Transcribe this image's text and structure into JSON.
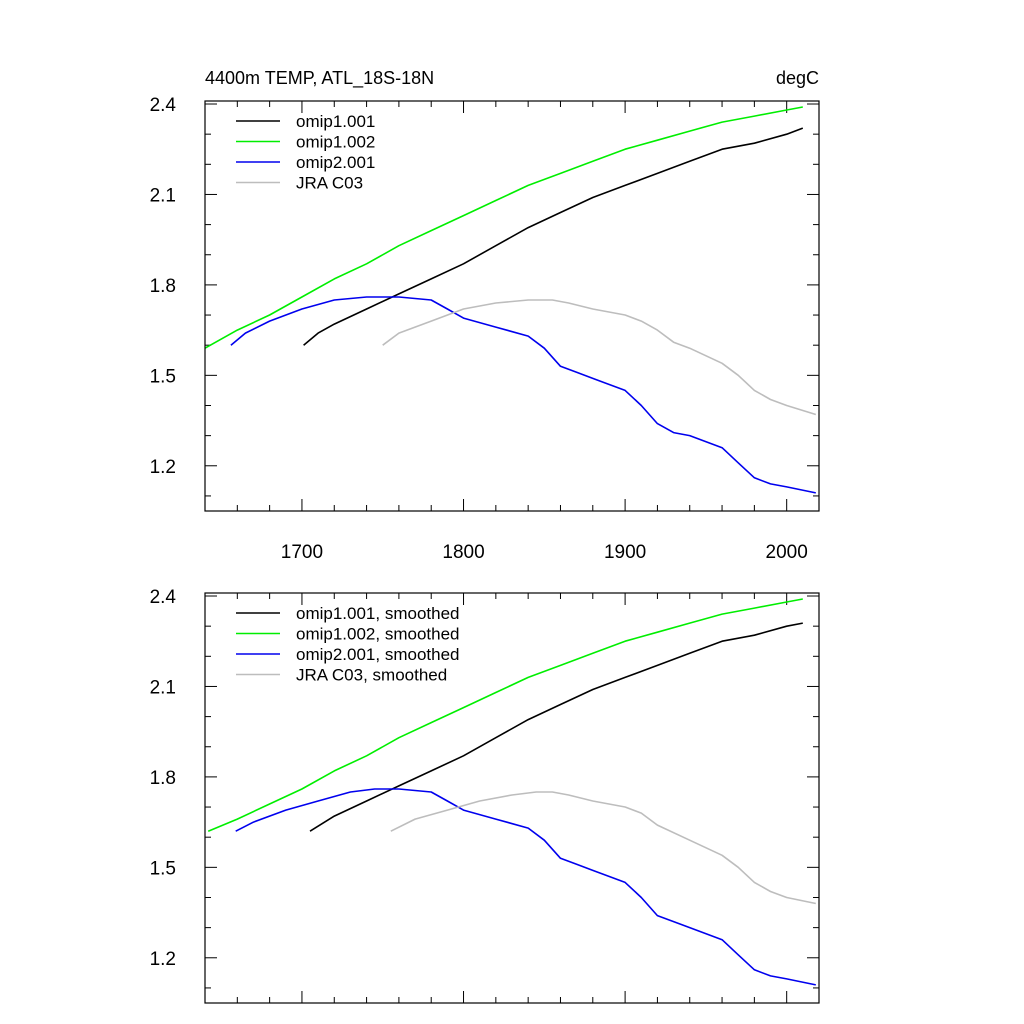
{
  "chart_data": [
    {
      "type": "line",
      "title_left": "4400m TEMP, ATL_18S-18N",
      "title_right": "degC",
      "xlabel": "",
      "ylabel": "",
      "xlim": [
        1640,
        2020
      ],
      "ylim": [
        1.05,
        2.41
      ],
      "x_ticks": [
        1700,
        1800,
        1900,
        2000
      ],
      "x_tick_labels": [
        "1700",
        "1800",
        "1900",
        "2000"
      ],
      "y_ticks": [
        1.2,
        1.5,
        1.8,
        2.1,
        2.4
      ],
      "y_tick_labels": [
        "1.2",
        "1.5",
        "1.8",
        "2.1",
        "2.4"
      ],
      "legend_position": "top-left",
      "series": [
        {
          "name": "omip1.001",
          "color": "#000000",
          "points": [
            [
              1701,
              1.6
            ],
            [
              1710,
              1.64
            ],
            [
              1720,
              1.67
            ],
            [
              1740,
              1.72
            ],
            [
              1760,
              1.77
            ],
            [
              1780,
              1.82
            ],
            [
              1800,
              1.87
            ],
            [
              1820,
              1.93
            ],
            [
              1840,
              1.99
            ],
            [
              1860,
              2.04
            ],
            [
              1880,
              2.09
            ],
            [
              1900,
              2.13
            ],
            [
              1920,
              2.17
            ],
            [
              1940,
              2.21
            ],
            [
              1960,
              2.25
            ],
            [
              1980,
              2.27
            ],
            [
              2000,
              2.3
            ],
            [
              2010,
              2.32
            ]
          ]
        },
        {
          "name": "omip1.002",
          "color": "#00ee00",
          "points": [
            [
              1640,
              1.59
            ],
            [
              1660,
              1.65
            ],
            [
              1680,
              1.7
            ],
            [
              1700,
              1.76
            ],
            [
              1720,
              1.82
            ],
            [
              1740,
              1.87
            ],
            [
              1760,
              1.93
            ],
            [
              1780,
              1.98
            ],
            [
              1800,
              2.03
            ],
            [
              1820,
              2.08
            ],
            [
              1840,
              2.13
            ],
            [
              1860,
              2.17
            ],
            [
              1880,
              2.21
            ],
            [
              1900,
              2.25
            ],
            [
              1920,
              2.28
            ],
            [
              1940,
              2.31
            ],
            [
              1960,
              2.34
            ],
            [
              1980,
              2.36
            ],
            [
              2000,
              2.38
            ],
            [
              2010,
              2.39
            ]
          ]
        },
        {
          "name": "omip2.001",
          "color": "#0000ee",
          "points": [
            [
              1656,
              1.6
            ],
            [
              1665,
              1.64
            ],
            [
              1680,
              1.68
            ],
            [
              1700,
              1.72
            ],
            [
              1720,
              1.75
            ],
            [
              1740,
              1.76
            ],
            [
              1760,
              1.76
            ],
            [
              1780,
              1.75
            ],
            [
              1790,
              1.72
            ],
            [
              1800,
              1.69
            ],
            [
              1820,
              1.66
            ],
            [
              1840,
              1.63
            ],
            [
              1850,
              1.59
            ],
            [
              1860,
              1.53
            ],
            [
              1870,
              1.51
            ],
            [
              1880,
              1.49
            ],
            [
              1900,
              1.45
            ],
            [
              1910,
              1.4
            ],
            [
              1920,
              1.34
            ],
            [
              1930,
              1.31
            ],
            [
              1940,
              1.3
            ],
            [
              1960,
              1.26
            ],
            [
              1970,
              1.21
            ],
            [
              1980,
              1.16
            ],
            [
              1990,
              1.14
            ],
            [
              2000,
              1.13
            ],
            [
              2018,
              1.11
            ]
          ]
        },
        {
          "name": "JRA C03",
          "color": "#bdbdbd",
          "points": [
            [
              1750,
              1.6
            ],
            [
              1760,
              1.64
            ],
            [
              1780,
              1.68
            ],
            [
              1800,
              1.72
            ],
            [
              1820,
              1.74
            ],
            [
              1840,
              1.75
            ],
            [
              1855,
              1.75
            ],
            [
              1865,
              1.74
            ],
            [
              1880,
              1.72
            ],
            [
              1900,
              1.7
            ],
            [
              1910,
              1.68
            ],
            [
              1920,
              1.65
            ],
            [
              1930,
              1.61
            ],
            [
              1940,
              1.59
            ],
            [
              1960,
              1.54
            ],
            [
              1970,
              1.5
            ],
            [
              1980,
              1.45
            ],
            [
              1990,
              1.42
            ],
            [
              2000,
              1.4
            ],
            [
              2018,
              1.37
            ]
          ]
        }
      ]
    },
    {
      "type": "line",
      "title_left": "",
      "title_right": "",
      "xlabel": "",
      "ylabel": "",
      "xlim": [
        1640,
        2020
      ],
      "ylim": [
        1.05,
        2.41
      ],
      "x_ticks": [
        1700,
        1800,
        1900,
        2000
      ],
      "x_tick_labels": [],
      "y_ticks": [
        1.2,
        1.5,
        1.8,
        2.1,
        2.4
      ],
      "y_tick_labels": [
        "1.2",
        "1.5",
        "1.8",
        "2.1",
        "2.4"
      ],
      "legend_position": "top-left",
      "series": [
        {
          "name": "omip1.001, smoothed",
          "color": "#000000",
          "points": [
            [
              1705,
              1.62
            ],
            [
              1720,
              1.67
            ],
            [
              1740,
              1.72
            ],
            [
              1760,
              1.77
            ],
            [
              1780,
              1.82
            ],
            [
              1800,
              1.87
            ],
            [
              1820,
              1.93
            ],
            [
              1840,
              1.99
            ],
            [
              1860,
              2.04
            ],
            [
              1880,
              2.09
            ],
            [
              1900,
              2.13
            ],
            [
              1920,
              2.17
            ],
            [
              1940,
              2.21
            ],
            [
              1960,
              2.25
            ],
            [
              1980,
              2.27
            ],
            [
              2000,
              2.3
            ],
            [
              2010,
              2.31
            ]
          ]
        },
        {
          "name": "omip1.002, smoothed",
          "color": "#00ee00",
          "points": [
            [
              1642,
              1.62
            ],
            [
              1660,
              1.66
            ],
            [
              1680,
              1.71
            ],
            [
              1700,
              1.76
            ],
            [
              1720,
              1.82
            ],
            [
              1740,
              1.87
            ],
            [
              1760,
              1.93
            ],
            [
              1780,
              1.98
            ],
            [
              1800,
              2.03
            ],
            [
              1820,
              2.08
            ],
            [
              1840,
              2.13
            ],
            [
              1860,
              2.17
            ],
            [
              1880,
              2.21
            ],
            [
              1900,
              2.25
            ],
            [
              1920,
              2.28
            ],
            [
              1940,
              2.31
            ],
            [
              1960,
              2.34
            ],
            [
              1980,
              2.36
            ],
            [
              2000,
              2.38
            ],
            [
              2010,
              2.39
            ]
          ]
        },
        {
          "name": "omip2.001, smoothed",
          "color": "#0000ee",
          "points": [
            [
              1659,
              1.62
            ],
            [
              1670,
              1.65
            ],
            [
              1690,
              1.69
            ],
            [
              1710,
              1.72
            ],
            [
              1730,
              1.75
            ],
            [
              1745,
              1.76
            ],
            [
              1760,
              1.76
            ],
            [
              1780,
              1.75
            ],
            [
              1790,
              1.72
            ],
            [
              1800,
              1.69
            ],
            [
              1820,
              1.66
            ],
            [
              1840,
              1.63
            ],
            [
              1850,
              1.59
            ],
            [
              1860,
              1.53
            ],
            [
              1870,
              1.51
            ],
            [
              1880,
              1.49
            ],
            [
              1900,
              1.45
            ],
            [
              1910,
              1.4
            ],
            [
              1920,
              1.34
            ],
            [
              1930,
              1.32
            ],
            [
              1940,
              1.3
            ],
            [
              1960,
              1.26
            ],
            [
              1970,
              1.21
            ],
            [
              1980,
              1.16
            ],
            [
              1990,
              1.14
            ],
            [
              2000,
              1.13
            ],
            [
              2018,
              1.11
            ]
          ]
        },
        {
          "name": "JRA C03, smoothed",
          "color": "#bdbdbd",
          "points": [
            [
              1755,
              1.62
            ],
            [
              1770,
              1.66
            ],
            [
              1790,
              1.69
            ],
            [
              1810,
              1.72
            ],
            [
              1830,
              1.74
            ],
            [
              1845,
              1.75
            ],
            [
              1855,
              1.75
            ],
            [
              1865,
              1.74
            ],
            [
              1880,
              1.72
            ],
            [
              1900,
              1.7
            ],
            [
              1910,
              1.68
            ],
            [
              1920,
              1.64
            ],
            [
              1940,
              1.59
            ],
            [
              1960,
              1.54
            ],
            [
              1970,
              1.5
            ],
            [
              1980,
              1.45
            ],
            [
              1990,
              1.42
            ],
            [
              2000,
              1.4
            ],
            [
              2018,
              1.38
            ]
          ]
        }
      ]
    }
  ]
}
